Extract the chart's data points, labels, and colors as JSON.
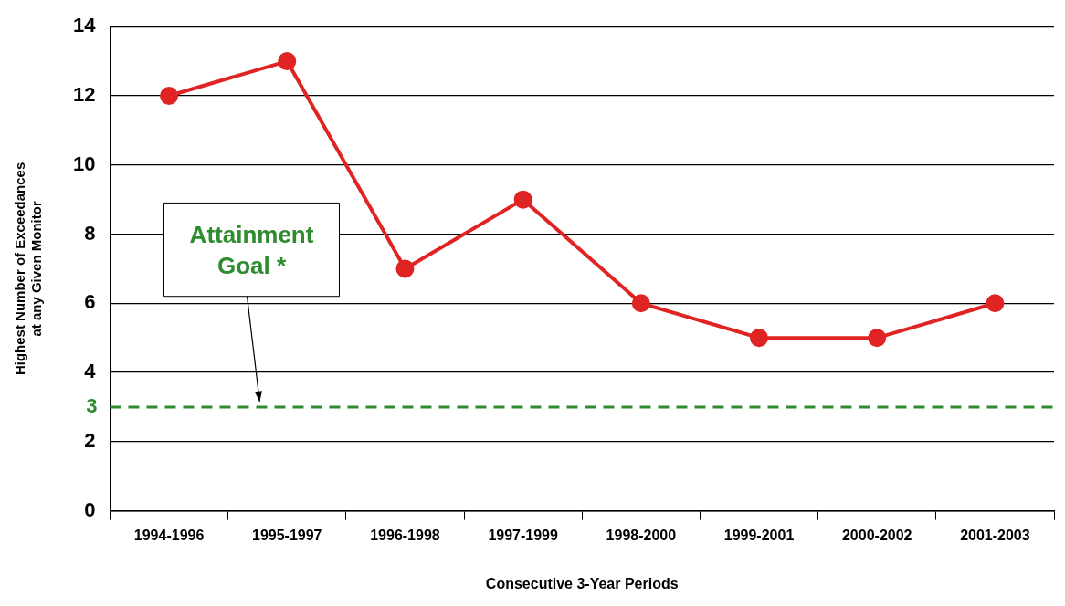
{
  "chart_data": {
    "type": "line",
    "categories": [
      "1994-1996",
      "1995-1997",
      "1996-1998",
      "1997-1999",
      "1998-2000",
      "1999-2001",
      "2000-2002",
      "2001-2003"
    ],
    "series": [
      {
        "color": "#e02424",
        "values": [
          12,
          13,
          7,
          9,
          6,
          5,
          5,
          6
        ]
      }
    ],
    "xlabel": "Consecutive 3-Year Periods",
    "ylabel": "Highest Number of Exceedances\nat any Given Monitor",
    "ylim": [
      0,
      14
    ],
    "yticks": [
      0,
      2,
      4,
      6,
      8,
      10,
      12,
      14
    ],
    "grid": "y",
    "legend": false,
    "marker": "circle",
    "line_style": "solid",
    "ref_lines": [
      {
        "axis": "y",
        "value": 3,
        "label": "3",
        "color": "#2e8b2e",
        "line_style": "dashed"
      }
    ],
    "annotations": [
      "Attainment Goal *"
    ]
  }
}
